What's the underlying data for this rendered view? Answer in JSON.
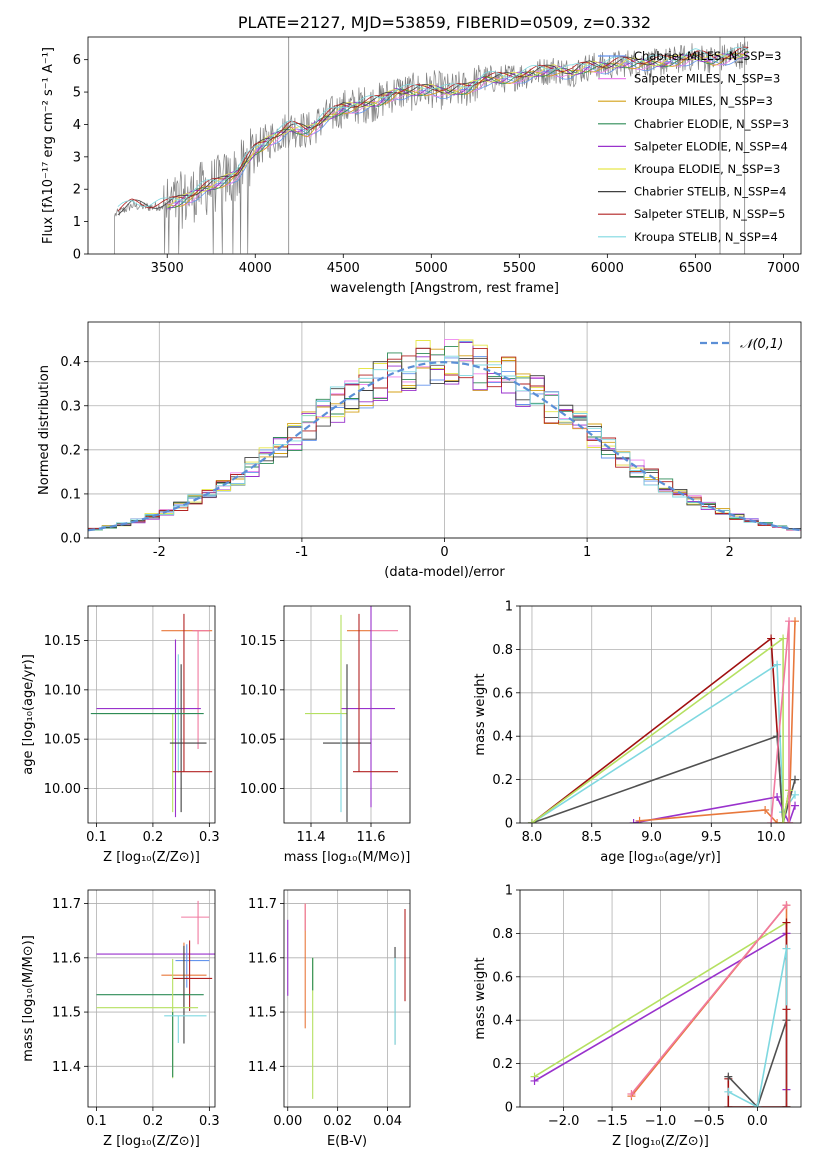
{
  "colors": [
    "#6495ed",
    "#ee82ee",
    "#d4a017",
    "#2e8b57",
    "#9932cc",
    "#e6e64a",
    "#404040",
    "#b22222",
    "#7fd8e0"
  ],
  "extra_colors": {
    "orange": "#e8783c",
    "lime": "#b5e061",
    "pink": "#f07aa0",
    "darkred": "#a01010",
    "gray": "#808080"
  },
  "chart_data": [
    {
      "id": "spectrum",
      "type": "line",
      "title": "PLATE=2127, MJD=53859, FIBERID=0509, z=0.332",
      "xlabel": "wavelength [Angstrom, rest frame]",
      "ylabel": "Flux [fλ10⁻¹⁷ erg cm⁻² s⁻¹ A⁻¹]",
      "xlim": [
        3050,
        7100
      ],
      "ylim": [
        0,
        6.7
      ],
      "xticks": [
        3500,
        4000,
        4500,
        5000,
        5500,
        6000,
        6500,
        7000
      ],
      "yticks": [
        0,
        1,
        2,
        3,
        4,
        5,
        6
      ],
      "legend_position": "upper-right",
      "legend": [
        "Chabrier MILES, N_SSP=3",
        "Salpeter MILES, N_SSP=3",
        "Kroupa MILES, N_SSP=3",
        "Chabrier ELODIE, N_SSP=3",
        "Salpeter ELODIE, N_SSP=4",
        "Kroupa ELODIE, N_SSP=3",
        "Chabrier STELIB, N_SSP=4",
        "Salpeter STELIB, N_SSP=5",
        "Kroupa STELIB, N_SSP=4"
      ],
      "model_continuum": {
        "x": [
          3200,
          3250,
          3300,
          3400,
          3500,
          3600,
          3700,
          3800,
          3900,
          4000,
          4100,
          4200,
          4300,
          4400,
          4500,
          4600,
          4700,
          4800,
          4900,
          5000,
          5100,
          5200,
          5300,
          5400,
          5500,
          5600,
          5700,
          5800,
          5900,
          6000,
          6100,
          6200,
          6300,
          6400,
          6500,
          6600,
          6700,
          6800,
          7000
        ],
        "y": [
          1.2,
          1.35,
          1.5,
          1.45,
          1.5,
          1.7,
          2.0,
          2.2,
          2.5,
          3.2,
          3.6,
          3.9,
          3.8,
          4.2,
          4.5,
          4.6,
          4.7,
          5.0,
          5.0,
          5.1,
          5.0,
          5.1,
          5.4,
          5.4,
          5.5,
          5.6,
          5.7,
          5.6,
          5.8,
          5.8,
          5.9,
          5.9,
          5.9,
          6.0,
          6.1,
          6.0,
          6.1,
          6.2,
          6.2
        ]
      }
    },
    {
      "id": "residuals",
      "type": "step",
      "xlabel": "(data-model)/error",
      "ylabel": "Normed distribution",
      "xlim": [
        -2.5,
        2.5
      ],
      "ylim": [
        0,
        0.49
      ],
      "xticks": [
        -2,
        -1,
        0,
        1,
        2
      ],
      "yticks": [
        0.0,
        0.1,
        0.2,
        0.3,
        0.4
      ],
      "grid": true,
      "legend": [
        "𝒩(0,1)"
      ],
      "legend_position": "upper-right",
      "bin_width": 0.1,
      "gaussian": {
        "mu": 0,
        "sigma": 1
      }
    },
    {
      "id": "age_vs_Z",
      "type": "errorbar",
      "xlabel": "Z [log₁₀(Z/Z⊙)]",
      "ylabel": "age  [log₁₀(age/yr)]",
      "xlim": [
        0.085,
        0.31
      ],
      "ylim": [
        9.965,
        10.185
      ],
      "xticks": [
        0.1,
        0.2,
        0.3
      ],
      "xticklabels": [
        "0.1",
        "0.2",
        "0.3"
      ],
      "yticks": [
        10.0,
        10.05,
        10.1,
        10.15
      ],
      "yticklabels": [
        "10.00",
        "10.05",
        "10.10",
        "10.15"
      ],
      "grid": true,
      "points": [
        {
          "x": 0.245,
          "y": 10.076,
          "xerr": [
            0.015,
            0.02
          ],
          "yerr": [
            0.06,
            0.06
          ],
          "color": "#7fd8e0"
        },
        {
          "x": 0.275,
          "y": 10.16,
          "xerr": [
            0.06,
            0.03
          ],
          "yerr": [
            0.0,
            0.0
          ],
          "color": "#e8783c"
        },
        {
          "x": 0.28,
          "y": 10.16,
          "xerr": [
            0.01,
            0.02
          ],
          "yerr": [
            0.12,
            0.0
          ],
          "color": "#f07aa0"
        },
        {
          "x": 0.24,
          "y": 10.081,
          "xerr": [
            0.14,
            0.045
          ],
          "yerr": [
            0.11,
            0.07
          ],
          "color": "#9932cc"
        },
        {
          "x": 0.235,
          "y": 10.076,
          "xerr": [
            0.13,
            0.01
          ],
          "yerr": [
            0.1,
            0.0
          ],
          "color": "#b5e061"
        },
        {
          "x": 0.25,
          "y": 10.046,
          "xerr": [
            0.02,
            0.045
          ],
          "yerr": [
            0.07,
            0.08
          ],
          "color": "#404040"
        },
        {
          "x": 0.255,
          "y": 10.017,
          "xerr": [
            0.02,
            0.05
          ],
          "yerr": [
            0.0,
            0.16
          ],
          "color": "#b22222"
        },
        {
          "x": 0.22,
          "y": 10.076,
          "xerr": [
            0.13,
            0.07
          ],
          "yerr": [
            0.0,
            0.0
          ],
          "color": "#2e8b57"
        }
      ]
    },
    {
      "id": "age_vs_mass",
      "type": "errorbar",
      "xlabel": "mass [log₁₀(M/M⊙)]",
      "ylabel": "",
      "xlim": [
        11.31,
        11.73
      ],
      "ylim": [
        9.965,
        10.185
      ],
      "xticks": [
        11.4,
        11.6
      ],
      "xticklabels": [
        "11.4",
        "11.6"
      ],
      "yticks": [
        10.0,
        10.05,
        10.1,
        10.15
      ],
      "yticklabels": [
        "10.00",
        "10.05",
        "10.10",
        "10.15"
      ],
      "grid": true,
      "points": [
        {
          "x": 11.6,
          "y": 10.16,
          "xerr": [
            0.08,
            0.0
          ],
          "yerr": [
            0.0,
            0.0
          ],
          "color": "#e8783c"
        },
        {
          "x": 11.6,
          "y": 10.16,
          "xerr": [
            0.0,
            0.09
          ],
          "yerr": [
            0.0,
            0.0
          ],
          "color": "#f07aa0"
        },
        {
          "x": 11.6,
          "y": 10.081,
          "xerr": [
            0.1,
            0.08
          ],
          "yerr": [
            0.1,
            0.11
          ],
          "color": "#9932cc"
        },
        {
          "x": 11.5,
          "y": 10.076,
          "xerr": [
            0.12,
            0.02
          ],
          "yerr": [
            0.0,
            0.1
          ],
          "color": "#b5e061"
        },
        {
          "x": 11.52,
          "y": 10.046,
          "xerr": [
            0.08,
            0.08
          ],
          "yerr": [
            0.08,
            0.08
          ],
          "color": "#404040"
        },
        {
          "x": 11.56,
          "y": 10.017,
          "xerr": [
            0.02,
            0.13
          ],
          "yerr": [
            0.0,
            0.16
          ],
          "color": "#b22222"
        },
        {
          "x": 11.5,
          "y": 10.076,
          "xerr": [
            0.0,
            0.0
          ],
          "yerr": [
            0.1,
            0.0
          ],
          "color": "#7fd8e0"
        },
        {
          "x": 11.6,
          "y": 10.16,
          "xerr": [
            0.0,
            0.0
          ],
          "yerr": [
            0.0,
            0.0
          ],
          "color": "#6495ed"
        }
      ]
    },
    {
      "id": "weight_vs_age",
      "type": "line",
      "xlabel": "age  [log₁₀(age/yr)]",
      "ylabel": "mass weight",
      "xlim": [
        7.9,
        10.25
      ],
      "ylim": [
        0,
        1.0
      ],
      "xticks": [
        8.0,
        8.5,
        9.0,
        9.5,
        10.0
      ],
      "xticklabels": [
        "8.0",
        "8.5",
        "9.0",
        "9.5",
        "10.0"
      ],
      "yticks": [
        0.0,
        0.2,
        0.4,
        0.6,
        0.8,
        1.0
      ],
      "grid": true,
      "series": [
        {
          "color": "#a01010",
          "x": [
            8.0,
            10.0,
            10.1,
            10.15
          ],
          "y": [
            0.0,
            0.85,
            0.0,
            0.15
          ]
        },
        {
          "color": "#7fd8e0",
          "x": [
            8.0,
            10.05,
            10.1,
            10.2
          ],
          "y": [
            0.0,
            0.73,
            0.05,
            0.13
          ]
        },
        {
          "color": "#505050",
          "x": [
            8.0,
            10.05,
            10.1,
            10.2
          ],
          "y": [
            0.0,
            0.4,
            0.0,
            0.2
          ]
        },
        {
          "color": "#9932cc",
          "x": [
            8.85,
            10.05,
            10.15,
            10.2
          ],
          "y": [
            0.0,
            0.12,
            0.0,
            0.08
          ]
        },
        {
          "color": "#e8783c",
          "x": [
            8.9,
            9.95,
            10.05,
            10.15,
            10.2
          ],
          "y": [
            0.01,
            0.06,
            0.0,
            0.0,
            0.93
          ]
        },
        {
          "color": "#b5e061",
          "x": [
            8.0,
            10.1,
            10.1,
            10.15
          ],
          "y": [
            0.0,
            0.85,
            0.0,
            0.15
          ]
        },
        {
          "color": "#f07aa0",
          "x": [
            10.0,
            10.15,
            10.15
          ],
          "y": [
            0.0,
            0.93,
            0.0
          ]
        }
      ]
    },
    {
      "id": "mass_vs_Z",
      "type": "errorbar",
      "xlabel": "Z [log₁₀(Z/Z⊙)]",
      "ylabel": "mass [log₁₀(M/M⊙)]",
      "xlim": [
        0.085,
        0.31
      ],
      "ylim": [
        11.325,
        11.725
      ],
      "xticks": [
        0.1,
        0.2,
        0.3
      ],
      "xticklabels": [
        "0.1",
        "0.2",
        "0.3"
      ],
      "yticks": [
        11.4,
        11.5,
        11.6,
        11.7
      ],
      "yticklabels": [
        "11.4",
        "11.5",
        "11.6",
        "11.7"
      ],
      "grid": true,
      "points": [
        {
          "x": 0.28,
          "y": 11.675,
          "xerr": [
            0.03,
            0.02
          ],
          "yerr": [
            0.05,
            0.03
          ],
          "color": "#f07aa0"
        },
        {
          "x": 0.24,
          "y": 11.607,
          "xerr": [
            0.14,
            0.07
          ],
          "yerr": [
            0.0,
            0.0
          ],
          "color": "#9932cc"
        },
        {
          "x": 0.26,
          "y": 11.595,
          "xerr": [
            0.02,
            0.04
          ],
          "yerr": [
            0.05,
            0.03
          ],
          "color": "#6495ed"
        },
        {
          "x": 0.255,
          "y": 11.568,
          "xerr": [
            0.04,
            0.04
          ],
          "yerr": [
            0.06,
            0.06
          ],
          "color": "#e8783c"
        },
        {
          "x": 0.265,
          "y": 11.562,
          "xerr": [
            0.03,
            0.04
          ],
          "yerr": [
            0.06,
            0.07
          ],
          "color": "#b22222"
        },
        {
          "x": 0.245,
          "y": 11.532,
          "xerr": [
            0.145,
            0.045
          ],
          "yerr": [
            0.0,
            0.0
          ],
          "color": "#2e8b57"
        },
        {
          "x": 0.255,
          "y": 11.532,
          "xerr": [
            0.0,
            0.0
          ],
          "yerr": [
            0.09,
            0.09
          ],
          "color": "#404040"
        },
        {
          "x": 0.235,
          "y": 11.508,
          "xerr": [
            0.135,
            0.045
          ],
          "yerr": [
            0.13,
            0.09
          ],
          "color": "#b5e061"
        },
        {
          "x": 0.235,
          "y": 11.5,
          "xerr": [
            0.0,
            0.0
          ],
          "yerr": [
            0.12,
            0.0
          ],
          "color": "#2e8b57"
        },
        {
          "x": 0.245,
          "y": 11.493,
          "xerr": [
            0.025,
            0.05
          ],
          "yerr": [
            0.05,
            0.0
          ],
          "color": "#7fd8e0"
        }
      ]
    },
    {
      "id": "mass_vs_ebv",
      "type": "errorbar",
      "xlabel": "E(B-V)",
      "ylabel": "",
      "xlim": [
        -0.0015,
        0.049
      ],
      "ylim": [
        11.325,
        11.725
      ],
      "xticks": [
        0.0,
        0.02,
        0.04
      ],
      "xticklabels": [
        "0.00",
        "0.02",
        "0.04"
      ],
      "yticks": [
        11.4,
        11.5,
        11.6,
        11.7
      ],
      "yticklabels": [
        "11.4",
        "11.5",
        "11.6",
        "11.7"
      ],
      "grid": true,
      "points": [
        {
          "x": 0.0,
          "y": 11.6,
          "xerr": [
            0,
            0
          ],
          "yerr": [
            0.07,
            0.07
          ],
          "color": "#9932cc"
        },
        {
          "x": 0.007,
          "y": 11.6,
          "xerr": [
            0,
            0
          ],
          "yerr": [
            0.13,
            0.1
          ],
          "color": "#e8783c"
        },
        {
          "x": 0.007,
          "y": 11.68,
          "xerr": [
            0,
            0
          ],
          "yerr": [
            0.03,
            0.02
          ],
          "color": "#f07aa0"
        },
        {
          "x": 0.01,
          "y": 11.5,
          "xerr": [
            0,
            0
          ],
          "yerr": [
            0.16,
            0.1
          ],
          "color": "#b5e061"
        },
        {
          "x": 0.01,
          "y": 11.57,
          "xerr": [
            0,
            0
          ],
          "yerr": [
            0.03,
            0.03
          ],
          "color": "#2e8b57"
        },
        {
          "x": 0.043,
          "y": 11.53,
          "xerr": [
            0,
            0
          ],
          "yerr": [
            0.09,
            0.09
          ],
          "color": "#404040"
        },
        {
          "x": 0.043,
          "y": 11.5,
          "xerr": [
            0,
            0
          ],
          "yerr": [
            0.06,
            0.1
          ],
          "color": "#7fd8e0"
        },
        {
          "x": 0.047,
          "y": 11.6,
          "xerr": [
            0,
            0
          ],
          "yerr": [
            0.08,
            0.09
          ],
          "color": "#b22222"
        }
      ]
    },
    {
      "id": "weight_vs_Z",
      "type": "line",
      "xlabel": "Z [log₁₀(Z/Z⊙)]",
      "ylabel": "mass weight",
      "xlim": [
        -2.45,
        0.45
      ],
      "ylim": [
        0,
        1.0
      ],
      "xticks": [
        -2.0,
        -1.5,
        -1.0,
        -0.5,
        0.0
      ],
      "xticklabels": [
        "−2.0",
        "−1.5",
        "−1.0",
        "−0.5",
        "0.0"
      ],
      "yticks": [
        0.0,
        0.2,
        0.4,
        0.6,
        0.8,
        1.0
      ],
      "grid": true,
      "series": [
        {
          "color": "#b5e061",
          "x": [
            -2.3,
            0.3,
            0.3
          ],
          "y": [
            0.14,
            0.85,
            0.0
          ]
        },
        {
          "color": "#9932cc",
          "x": [
            -2.3,
            0.3,
            0.3
          ],
          "y": [
            0.12,
            0.8,
            0.08
          ]
        },
        {
          "color": "#e8783c",
          "x": [
            -1.3,
            0.3,
            0.3
          ],
          "y": [
            0.05,
            0.93,
            0.0
          ]
        },
        {
          "color": "#f07aa0",
          "x": [
            -1.3,
            0.3
          ],
          "y": [
            0.06,
            0.93
          ]
        },
        {
          "color": "#a01010",
          "x": [
            -0.3,
            -0.3,
            0.3,
            0.3,
            0.3
          ],
          "y": [
            0.13,
            0.0,
            0.0,
            0.85,
            0.0
          ]
        },
        {
          "color": "#505050",
          "x": [
            -0.3,
            0.0,
            0.3,
            0.3
          ],
          "y": [
            0.14,
            0.0,
            0.4,
            0.0
          ]
        },
        {
          "color": "#7fd8e0",
          "x": [
            -0.3,
            0.0,
            0.3,
            0.3
          ],
          "y": [
            0.07,
            0.0,
            0.73,
            0.0
          ]
        },
        {
          "color": "#b22222",
          "x": [
            0.3,
            0.3
          ],
          "y": [
            0.0,
            0.45
          ]
        }
      ]
    }
  ]
}
